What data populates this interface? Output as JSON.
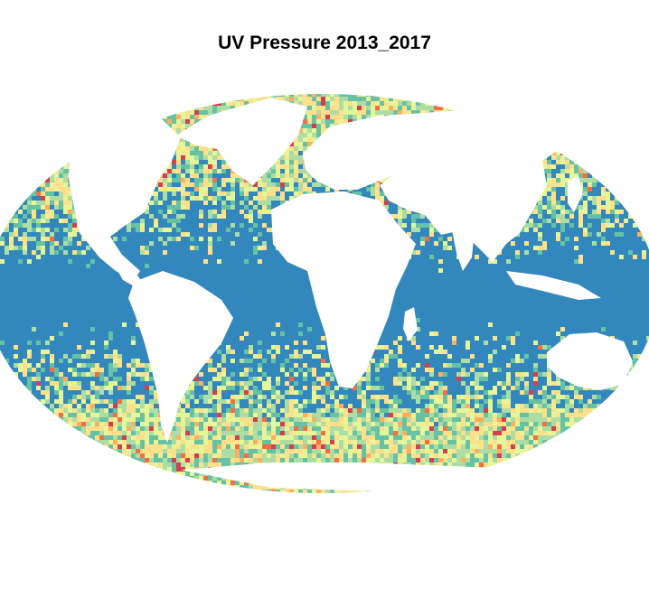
{
  "title": "UV Pressure 2013_2017",
  "colors": {
    "ocean_base": "#3288bd",
    "land": "#ffffff",
    "palette": [
      "#3288bd",
      "#66c2a5",
      "#abdda4",
      "#e6f598",
      "#fee08b",
      "#fdae61",
      "#f46d43",
      "#d53e4f"
    ]
  }
}
